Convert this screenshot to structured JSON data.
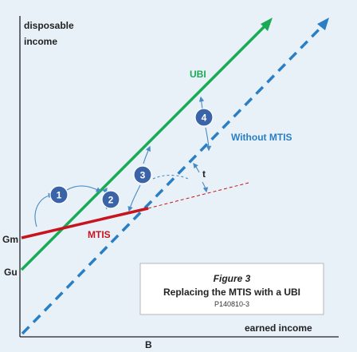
{
  "axes": {
    "y_label_line1": "disposable",
    "y_label_line2": "income",
    "x_label": "earned income",
    "x_tick": "B",
    "y_tick_gm": "Gm",
    "y_tick_gu": "Gu"
  },
  "lines": {
    "ubi_label": "UBI",
    "without_mtis_label": "Without MTIS",
    "mtis_label": "MTIS",
    "t_label": "t"
  },
  "steps": [
    "1",
    "2",
    "3",
    "4"
  ],
  "caption": {
    "figure": "Figure 3",
    "title": "Replacing the MTIS with a UBI",
    "code": "P140810-3"
  },
  "colors": {
    "ubi": "#1aaa55",
    "without_mtis": "#2a7fc4",
    "mtis": "#c8141e",
    "step_circle": "#3b63a8",
    "arrow": "#4a8ac4"
  }
}
